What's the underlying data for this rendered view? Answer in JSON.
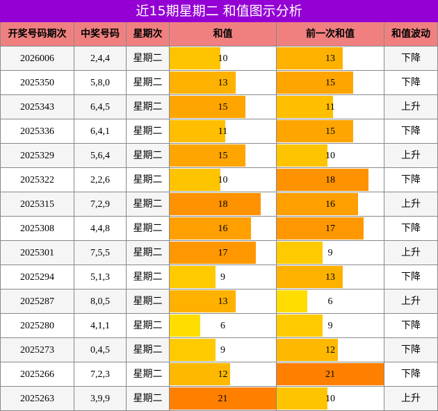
{
  "title": "近15期星期二 和值图示分析",
  "table": {
    "header": [
      "开奖号码期次",
      "中奖号码",
      "星期次",
      "和值",
      "前一次和值",
      "和值波动"
    ],
    "rows": [
      [
        "2026006",
        "2,4,4",
        "星期二",
        10,
        13,
        "下降"
      ],
      [
        "2025350",
        "5,8,0",
        "星期二",
        13,
        15,
        "下降"
      ],
      [
        "2025343",
        "6,4,5",
        "星期二",
        15,
        11,
        "上升"
      ],
      [
        "2025336",
        "6,4,1",
        "星期二",
        11,
        15,
        "下降"
      ],
      [
        "2025329",
        "5,6,4",
        "星期二",
        15,
        10,
        "上升"
      ],
      [
        "2025322",
        "2,2,6",
        "星期二",
        10,
        18,
        "下降"
      ],
      [
        "2025315",
        "7,2,9",
        "星期二",
        18,
        16,
        "上升"
      ],
      [
        "2025308",
        "4,4,8",
        "星期二",
        16,
        17,
        "下降"
      ],
      [
        "2025301",
        "7,5,5",
        "星期二",
        17,
        9,
        "上升"
      ],
      [
        "2025294",
        "5,1,3",
        "星期二",
        9,
        13,
        "下降"
      ],
      [
        "2025287",
        "8,0,5",
        "星期二",
        13,
        6,
        "上升"
      ],
      [
        "2025280",
        "4,1,1",
        "星期二",
        6,
        9,
        "下降"
      ],
      [
        "2025273",
        "0,4,5",
        "星期二",
        9,
        12,
        "下降"
      ],
      [
        "2025266",
        "7,2,3",
        "星期二",
        12,
        21,
        "下降"
      ],
      [
        "2025263",
        "3,9,9",
        "星期二",
        21,
        10,
        "上升"
      ]
    ]
  }
}
